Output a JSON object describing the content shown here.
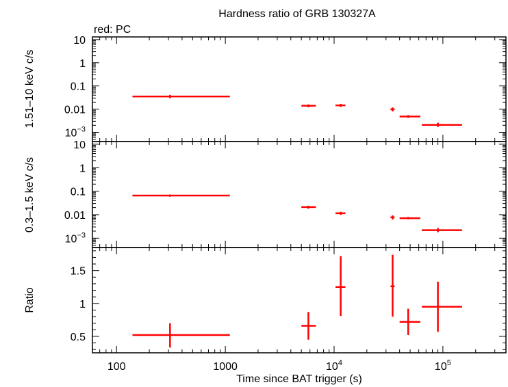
{
  "chart_data": {
    "type": "scatter",
    "title": "Hardness ratio of GRB 130327A",
    "subtitle": "red: PC",
    "xlabel": "Time since BAT trigger (s)",
    "x_scale": "log",
    "xlim": [
      60,
      380000
    ],
    "x_ticks": [
      {
        "value": 100,
        "label": "100"
      },
      {
        "value": 1000,
        "label": "1000"
      },
      {
        "value": 10000,
        "label": "10",
        "sup": "4"
      },
      {
        "value": 100000,
        "label": "10",
        "sup": "5"
      }
    ],
    "series_color": "#ff0000",
    "panels": [
      {
        "id": "hard",
        "ylabel": "1.51–10 keV c/s",
        "y_scale": "log",
        "ylim": [
          0.0004,
          13
        ],
        "y_ticks": [
          {
            "value": 10,
            "label": "10"
          },
          {
            "value": 1,
            "label": "1"
          },
          {
            "value": 0.1,
            "label": "0.1"
          },
          {
            "value": 0.01,
            "label": "0.01"
          },
          {
            "value": 0.001,
            "label": "10",
            "sup": "−3"
          }
        ],
        "points": [
          {
            "x": 310,
            "xlo": 140,
            "xhi": 1100,
            "y": 0.035,
            "ylo": 0.03,
            "yhi": 0.041
          },
          {
            "x": 5800,
            "xlo": 5000,
            "xhi": 6800,
            "y": 0.014,
            "ylo": 0.012,
            "yhi": 0.016
          },
          {
            "x": 11500,
            "xlo": 10300,
            "xhi": 12700,
            "y": 0.0145,
            "ylo": 0.0125,
            "yhi": 0.0168
          },
          {
            "x": 34500,
            "xlo": 33000,
            "xhi": 36000,
            "y": 0.0098,
            "ylo": 0.008,
            "yhi": 0.0118
          },
          {
            "x": 48000,
            "xlo": 40000,
            "xhi": 62000,
            "y": 0.0048,
            "ylo": 0.0042,
            "yhi": 0.0055
          },
          {
            "x": 90000,
            "xlo": 64000,
            "xhi": 150000,
            "y": 0.0021,
            "ylo": 0.0017,
            "yhi": 0.0026
          }
        ]
      },
      {
        "id": "soft",
        "ylabel": "0.3–1.5 keV c/s",
        "y_scale": "log",
        "ylim": [
          0.0004,
          13
        ],
        "y_ticks": [
          {
            "value": 10,
            "label": "10"
          },
          {
            "value": 1,
            "label": "1"
          },
          {
            "value": 0.1,
            "label": "0.1"
          },
          {
            "value": 0.01,
            "label": "0.01"
          },
          {
            "value": 0.001,
            "label": "10",
            "sup": "−3"
          }
        ],
        "points": [
          {
            "x": 310,
            "xlo": 140,
            "xhi": 1100,
            "y": 0.065,
            "ylo": 0.058,
            "yhi": 0.072
          },
          {
            "x": 5800,
            "xlo": 5000,
            "xhi": 6800,
            "y": 0.021,
            "ylo": 0.018,
            "yhi": 0.024
          },
          {
            "x": 11500,
            "xlo": 10300,
            "xhi": 12700,
            "y": 0.0115,
            "ylo": 0.0098,
            "yhi": 0.0133
          },
          {
            "x": 34500,
            "xlo": 33000,
            "xhi": 36000,
            "y": 0.0077,
            "ylo": 0.0062,
            "yhi": 0.0093
          },
          {
            "x": 48000,
            "xlo": 40000,
            "xhi": 62000,
            "y": 0.0071,
            "ylo": 0.0063,
            "yhi": 0.008
          },
          {
            "x": 90000,
            "xlo": 64000,
            "xhi": 150000,
            "y": 0.0022,
            "ylo": 0.0018,
            "yhi": 0.0027
          }
        ]
      },
      {
        "id": "ratio",
        "ylabel": "Ratio",
        "y_scale": "linear",
        "ylim": [
          0.25,
          1.85
        ],
        "y_ticks": [
          {
            "value": 0.5,
            "label": "0.5"
          },
          {
            "value": 1,
            "label": "1"
          },
          {
            "value": 1.5,
            "label": "1.5"
          }
        ],
        "points": [
          {
            "x": 310,
            "xlo": 140,
            "xhi": 1100,
            "y": 0.52,
            "ylo": 0.33,
            "yhi": 0.7
          },
          {
            "x": 5800,
            "xlo": 5000,
            "xhi": 6800,
            "y": 0.66,
            "ylo": 0.45,
            "yhi": 0.87
          },
          {
            "x": 11500,
            "xlo": 10300,
            "xhi": 12700,
            "y": 1.25,
            "ylo": 0.81,
            "yhi": 1.72
          },
          {
            "x": 34500,
            "xlo": 33000,
            "xhi": 36000,
            "y": 1.26,
            "ylo": 0.8,
            "yhi": 1.74
          },
          {
            "x": 48000,
            "xlo": 40000,
            "xhi": 62000,
            "y": 0.72,
            "ylo": 0.52,
            "yhi": 0.92
          },
          {
            "x": 90000,
            "xlo": 64000,
            "xhi": 150000,
            "y": 0.95,
            "ylo": 0.57,
            "yhi": 1.33
          }
        ]
      }
    ]
  }
}
